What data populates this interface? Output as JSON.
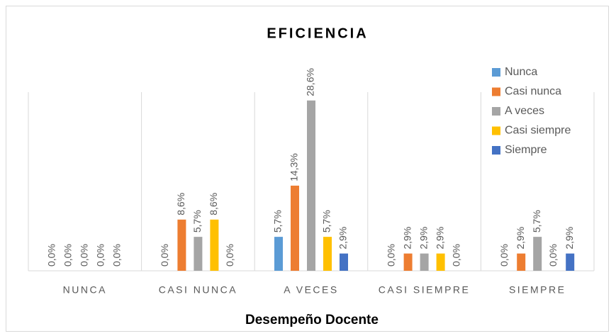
{
  "chart_data": {
    "type": "bar",
    "title": "EFICIENCIA",
    "x_label": "Desempeño Docente",
    "categories": [
      "NUNCA",
      "CASI NUNCA",
      "A VECES",
      "CASI SIEMPRE",
      "SIEMPRE"
    ],
    "series": [
      {
        "name": "Nunca",
        "color": "#5b9bd5",
        "values": [
          0,
          0,
          5.7,
          0,
          0
        ],
        "value_labels": [
          "0,0%",
          "0,0%",
          "5,7%",
          "0,0%",
          "0,0%"
        ]
      },
      {
        "name": "Casi nunca",
        "color": "#ed7d31",
        "values": [
          0,
          8.6,
          14.3,
          2.9,
          2.9
        ],
        "value_labels": [
          "0,0%",
          "8,6%",
          "14,3%",
          "2,9%",
          "2,9%"
        ]
      },
      {
        "name": "A veces",
        "color": "#a5a5a5",
        "values": [
          0,
          5.7,
          28.6,
          2.9,
          5.7
        ],
        "value_labels": [
          "0,0%",
          "5,7%",
          "28,6%",
          "2,9%",
          "5,7%"
        ]
      },
      {
        "name": "Casi siempre",
        "color": "#ffc000",
        "values": [
          0,
          8.6,
          5.7,
          2.9,
          0
        ],
        "value_labels": [
          "0,0%",
          "8,6%",
          "5,7%",
          "2,9%",
          "0,0%"
        ]
      },
      {
        "name": "Siempre",
        "color": "#4472c4",
        "values": [
          0,
          0,
          2.9,
          0,
          2.9
        ],
        "value_labels": [
          "0,0%",
          "0,0%",
          "2,9%",
          "0,0%",
          "2,9%"
        ]
      }
    ],
    "ylim": [
      0,
      30
    ],
    "grid": true,
    "legend": "top-right"
  }
}
